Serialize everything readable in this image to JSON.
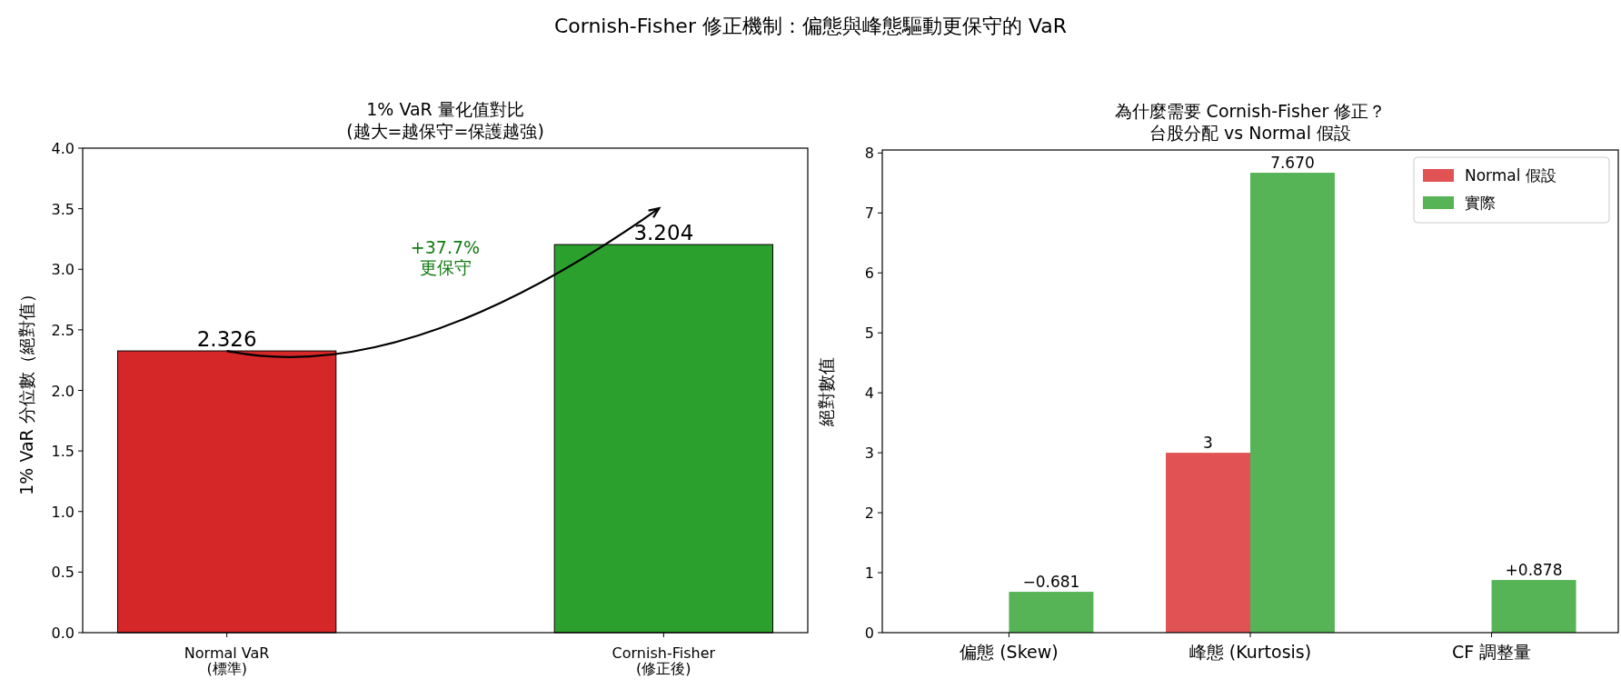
{
  "chart_data": [
    {
      "type": "other",
      "title": "Cornish-Fisher 修正機制：偏態與峰態驅動更保守的 VaR"
    },
    {
      "type": "bar",
      "title": "1% VaR 量化值對比",
      "subtitle": "(越大=越保守=保護越強)",
      "ylabel": "1% VaR 分位數（絕對值）",
      "categories": [
        "Normal VaR\n(標準)",
        "Cornish-Fisher\n(修正後)"
      ],
      "values": [
        2.326,
        3.204
      ],
      "colors": [
        "#d62728",
        "#2ca02c"
      ],
      "data_labels": true,
      "ylim": [
        0,
        4
      ],
      "yticks": [
        {
          "value": 0,
          "label": "0.0"
        },
        0.5,
        {
          "value": 1,
          "label": "1.0"
        },
        1.5,
        {
          "value": 2,
          "label": "2.0"
        },
        2.5,
        {
          "value": 3,
          "label": "3.0"
        },
        3.5,
        {
          "value": 4,
          "label": "4.0"
        }
      ],
      "annotations": [
        "+37.7%\n更保守"
      ]
    },
    {
      "type": "bar",
      "title": "為什麼需要 Cornish-Fisher 修正？",
      "subtitle": "台股分配 vs Normal 假設",
      "ylabel": "絕對數值",
      "categories": [
        "偏態 (Skew)",
        "峰態 (Kurtosis)",
        "CF 調整量"
      ],
      "ylim": [
        0,
        8.05
      ],
      "yticks": [
        0,
        1,
        2,
        3,
        4,
        5,
        6,
        7,
        8
      ],
      "legend": "top right",
      "series": [
        {
          "name": "Normal 假設",
          "color": "#e05253",
          "values": [
            0,
            3,
            0
          ],
          "value_labels": [
            null,
            "3",
            null
          ]
        },
        {
          "name": "實際",
          "color": "#56b356",
          "values": [
            0.681,
            7.67,
            0.878
          ],
          "value_labels": [
            null,
            "7.670",
            "+0.878"
          ]
        }
      ],
      "annotations": [
        {
          "text": "−0.681",
          "x": "偏態 (Skew)",
          "y": 0.681
        }
      ]
    }
  ]
}
